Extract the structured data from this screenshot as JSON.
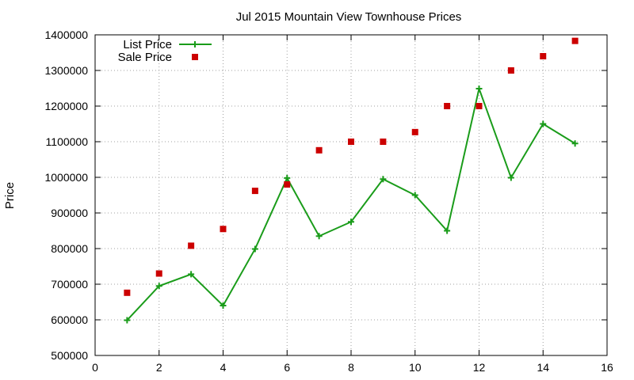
{
  "chart_data": {
    "type": "line",
    "title": "Jul 2015 Mountain View Townhouse Prices",
    "xlabel": "",
    "ylabel": "Price",
    "xlim": [
      0,
      16
    ],
    "ylim": [
      500000,
      1400000
    ],
    "x_ticks": [
      0,
      2,
      4,
      6,
      8,
      10,
      12,
      14,
      16
    ],
    "y_ticks": [
      500000,
      600000,
      700000,
      800000,
      900000,
      1000000,
      1100000,
      1200000,
      1300000,
      1400000
    ],
    "x_tick_labels": [
      "0",
      "2",
      "4",
      "6",
      "8",
      "10",
      "12",
      "14",
      "16"
    ],
    "y_tick_labels": [
      "500000",
      "600000",
      "700000",
      "800000",
      "900000",
      "1000000",
      "1100000",
      "1200000",
      "1300000",
      "1400000"
    ],
    "grid": true,
    "legend_position": "top-left",
    "x": [
      1,
      2,
      3,
      4,
      5,
      6,
      7,
      8,
      9,
      10,
      11,
      12,
      13,
      14,
      15
    ],
    "series": [
      {
        "name": "List Price",
        "style": "line+cross",
        "color": "#1a9c1a",
        "values": [
          599000,
          695000,
          728000,
          640000,
          799000,
          998000,
          835000,
          875000,
          995000,
          950000,
          850000,
          1249000,
          999000,
          1150000,
          1095000
        ]
      },
      {
        "name": "Sale Price",
        "style": "square",
        "color": "#cc0000",
        "values": [
          676000,
          730000,
          808000,
          855000,
          962000,
          980000,
          1076000,
          1100000,
          1100000,
          1127000,
          1200000,
          1200000,
          1300000,
          1340000,
          1383000
        ]
      }
    ]
  }
}
